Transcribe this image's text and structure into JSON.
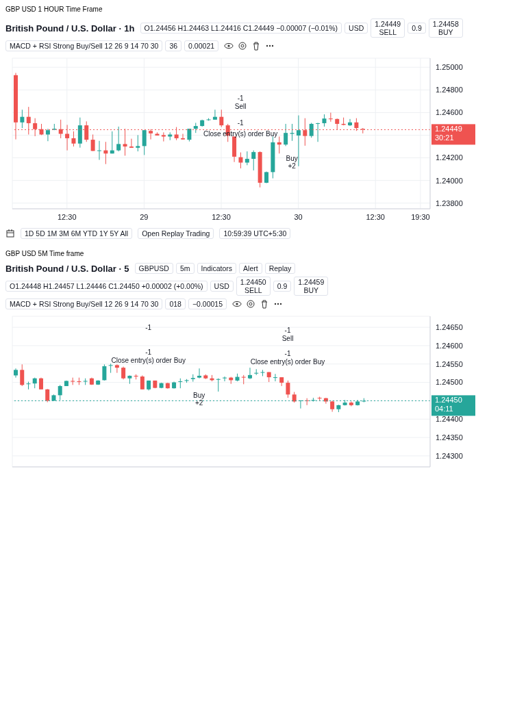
{
  "chart_data": [
    {
      "type": "candlestick",
      "title": "GBP USD 1 HOUR Time Frame",
      "subtitle": "British Pound / U.S. Dollar · 1h",
      "categories": [
        null,
        null,
        null,
        null,
        null,
        null,
        null,
        null,
        "12:30",
        null,
        null,
        null,
        null,
        null,
        null,
        null,
        null,
        null,
        null,
        null,
        "29",
        null,
        null,
        null,
        null,
        null,
        null,
        null,
        null,
        null,
        null,
        null,
        "12:30",
        null,
        null,
        null,
        null,
        null,
        null,
        null,
        null,
        null,
        null,
        null,
        "30",
        null,
        null,
        null,
        null,
        null,
        null,
        null,
        null,
        null,
        null,
        null,
        "12:30",
        null,
        null,
        null,
        null,
        null,
        null,
        "19:30",
        null
      ],
      "ohlc": [
        [
          1.2493,
          1.2495,
          1.24363,
          1.24513
        ],
        [
          1.24513,
          1.24625,
          1.24463,
          1.24562
        ],
        [
          1.24562,
          1.2465,
          1.24406,
          1.24506
        ],
        [
          1.24506,
          1.2455,
          1.24391,
          1.24453
        ],
        [
          1.24453,
          1.245,
          1.24401,
          1.24406
        ],
        [
          1.24406,
          1.24457,
          1.24347,
          1.24444
        ],
        [
          1.24449,
          1.245,
          1.24444,
          1.24457
        ],
        [
          1.24453,
          1.24537,
          1.24373,
          1.24412
        ],
        [
          1.24412,
          1.24491,
          1.24266,
          1.24373
        ],
        [
          1.24373,
          1.24434,
          1.243,
          1.24326
        ],
        [
          1.24326,
          1.24556,
          1.2429,
          1.24487
        ],
        [
          1.24487,
          1.24522,
          1.24341,
          1.2436
        ],
        [
          1.2436,
          1.24406,
          1.24261,
          1.24261
        ],
        [
          1.24261,
          1.2435,
          1.24182,
          1.24266
        ],
        [
          1.24266,
          1.24341,
          1.24145,
          1.24238
        ],
        [
          1.24238,
          1.24434,
          1.24238,
          1.24266
        ],
        [
          1.24266,
          1.24476,
          1.24257,
          1.24322
        ],
        [
          1.24322,
          1.24457,
          1.24219,
          1.243
        ],
        [
          1.243,
          1.24369,
          1.24289,
          1.24289
        ],
        [
          1.24289,
          1.24401,
          1.24257,
          1.24304
        ],
        [
          1.24304,
          1.24444,
          1.24225,
          1.24444
        ],
        [
          1.24438,
          1.24453,
          1.24363,
          1.24416
        ],
        [
          1.24412,
          1.24425,
          1.24397,
          1.24397
        ],
        [
          1.24401,
          1.24425,
          1.24345,
          1.24388
        ],
        [
          1.24388,
          1.24425,
          1.24356,
          1.24406
        ],
        [
          1.24406,
          1.24472,
          1.24356,
          1.24373
        ],
        [
          1.24373,
          1.24412,
          1.2436,
          1.24363
        ],
        [
          1.2436,
          1.24457,
          1.24345,
          1.24457
        ],
        [
          1.24457,
          1.24509,
          1.2442,
          1.24481
        ],
        [
          1.24481,
          1.24537,
          1.24476,
          1.24532
        ],
        [
          1.24534,
          1.2455,
          1.24528,
          1.24539
        ],
        [
          1.24537,
          1.24625,
          1.24537,
          1.24562
        ],
        [
          1.24562,
          1.24625,
          1.24472,
          1.24487
        ],
        [
          1.24487,
          1.245,
          1.24341,
          1.24397
        ],
        [
          1.24388,
          1.24388,
          1.24163,
          1.2421
        ],
        [
          1.24206,
          1.24248,
          1.24107,
          1.24158
        ],
        [
          1.24158,
          1.24257,
          1.24135,
          1.24191
        ],
        [
          1.24191,
          1.24266,
          1.24089,
          1.24251
        ],
        [
          1.24251,
          1.24257,
          1.23939,
          1.2398
        ],
        [
          1.2398,
          1.24079,
          1.23976,
          1.24074
        ],
        [
          1.24074,
          1.24388,
          1.24019,
          1.24337
        ],
        [
          1.24337,
          1.24388,
          1.24238,
          1.24317
        ],
        [
          1.24317,
          1.245,
          1.24304,
          1.2442
        ],
        [
          1.24412,
          1.245,
          1.2435,
          1.2442
        ],
        [
          1.24397,
          1.24575,
          1.24126,
          1.24444
        ],
        [
          1.24444,
          1.2455,
          1.24307,
          1.24393
        ],
        [
          1.24393,
          1.24509,
          1.24378,
          1.245
        ],
        [
          1.245,
          1.24509,
          1.24341,
          1.24506
        ],
        [
          1.24506,
          1.24584,
          1.24476,
          1.24547
        ],
        [
          1.24547,
          1.24599,
          1.24519,
          1.24543
        ],
        [
          1.24543,
          1.24547,
          1.24449,
          1.245
        ],
        [
          1.245,
          1.24556,
          1.24487,
          1.24491
        ],
        [
          1.24487,
          1.24543,
          1.24481,
          1.24513
        ],
        [
          1.24513,
          1.2455,
          1.24438,
          1.24463
        ],
        [
          1.24456,
          1.24463,
          1.24416,
          1.24449
        ],
        null,
        null,
        null,
        null,
        null,
        null,
        null,
        null,
        null,
        null
      ],
      "ylim": [
        1.2375,
        1.2508
      ],
      "yticks": [
        {
          "value": 1.238,
          "label": "1.23800"
        },
        {
          "value": 1.24,
          "label": "1.24000"
        },
        {
          "value": 1.242,
          "label": "1.24200"
        },
        {
          "value": 1.244,
          "label": null
        },
        {
          "value": 1.246,
          "label": "1.24600"
        },
        {
          "value": 1.248,
          "label": "1.24800"
        },
        {
          "value": 1.25,
          "label": "1.25000"
        }
      ],
      "grid": true,
      "ref_lines": [
        {
          "axis": "y",
          "value": 1.24449,
          "label": "1.24449\n30:21",
          "color": "#ef5350",
          "line_style": "dotted"
        }
      ],
      "annotations": [
        "O1.24456 H1.24463 L1.24416 C1.24449 −0.00007 (−0.01%)",
        "USD",
        "1.24449\nSELL",
        "0.9",
        "1.24458\nBUY",
        "MACD + RSI Strong Buy/Sell 12 26 9 14 70 30",
        "36",
        "0.00021",
        "1D 5D 1M 3M 6M YTD 1Y 5Y All",
        "Open Replay Trading",
        "10:59:39 UTC+5:30",
        "-1",
        "Sell",
        "-1",
        "Close entry(s) order Buy",
        "Buy",
        "+2"
      ]
    },
    {
      "type": "candlestick",
      "title": "GBP USD 5M Time frame",
      "subtitle": "British Pound / U.S. Dollar · 5",
      "categories": [
        null,
        null,
        null,
        null,
        null,
        null,
        null,
        null,
        null,
        null,
        null,
        null,
        null,
        null,
        null,
        null,
        null,
        null,
        null,
        null,
        null,
        null,
        null,
        null,
        null,
        null,
        null,
        null,
        null,
        null,
        null,
        null,
        null,
        null,
        null,
        null,
        null,
        null,
        null,
        null,
        null,
        null,
        null,
        null,
        null,
        null,
        null,
        null,
        null,
        null,
        null,
        null,
        null,
        null,
        null,
        null,
        null,
        null,
        null,
        null,
        null,
        null,
        null,
        null,
        null,
        null
      ],
      "ohlc": [
        [
          1.24519,
          1.24538,
          1.24513,
          1.24534
        ],
        [
          1.24534,
          1.24549,
          1.2449,
          1.24493
        ],
        [
          1.24497,
          1.24502,
          1.24481,
          1.24497
        ],
        [
          1.24497,
          1.24513,
          1.24484,
          1.24511
        ],
        [
          1.24511,
          1.24513,
          1.24481,
          1.24481
        ],
        [
          1.24481,
          1.24482,
          1.24446,
          1.2445
        ],
        [
          1.2445,
          1.24467,
          1.2445,
          1.24465
        ],
        [
          1.24465,
          1.24493,
          1.24452,
          1.2449
        ],
        [
          1.2449,
          1.24505,
          1.2449,
          1.24504
        ],
        [
          1.24504,
          1.24513,
          1.24493,
          1.24502
        ],
        [
          1.24503,
          1.24513,
          1.24493,
          1.24501
        ],
        [
          1.24503,
          1.24511,
          1.24493,
          1.24504
        ],
        [
          1.24511,
          1.24513,
          1.24493,
          1.24494
        ],
        [
          1.24494,
          1.24506,
          1.24493,
          1.24505
        ],
        [
          1.24506,
          1.24549,
          1.24505,
          1.24544
        ],
        [
          1.24546,
          1.24551,
          1.24526,
          1.24547
        ],
        [
          1.24547,
          1.24549,
          1.24526,
          1.2454
        ],
        [
          1.2454,
          1.24543,
          1.24508,
          1.24511
        ],
        [
          1.24511,
          1.24519,
          1.24496,
          1.24518
        ],
        [
          1.24518,
          1.24522,
          1.24508,
          1.24516
        ],
        [
          1.24516,
          1.24519,
          1.24481,
          1.24481
        ],
        [
          1.24481,
          1.24505,
          1.24478,
          1.24505
        ],
        [
          1.24505,
          1.24505,
          1.24484,
          1.24485
        ],
        [
          1.24485,
          1.24499,
          1.24484,
          1.24498
        ],
        [
          1.24498,
          1.24499,
          1.24483,
          1.24484
        ],
        [
          1.24484,
          1.24502,
          1.24483,
          1.245
        ],
        [
          1.24502,
          1.24511,
          1.24484,
          1.24503
        ],
        [
          1.24504,
          1.24509,
          1.24499,
          1.24506
        ],
        [
          1.24509,
          1.24522,
          1.24502,
          1.24512
        ],
        [
          1.24513,
          1.24538,
          1.24511,
          1.24518
        ],
        [
          1.24519,
          1.24522,
          1.24509,
          1.24511
        ],
        [
          1.24511,
          1.2452,
          1.24503,
          1.24506
        ],
        [
          1.24508,
          1.24511,
          1.24475,
          1.24509
        ],
        [
          1.24512,
          1.24516,
          1.24503,
          1.24513
        ],
        [
          1.24513,
          1.24515,
          1.24496,
          1.24506
        ],
        [
          1.24505,
          1.24524,
          1.24503,
          1.24515
        ],
        [
          1.24515,
          1.2452,
          1.24495,
          1.24513
        ],
        [
          1.24511,
          1.2454,
          1.24509,
          1.2452
        ],
        [
          1.24524,
          1.24536,
          1.2452,
          1.24526
        ],
        [
          1.24528,
          1.24534,
          1.24517,
          1.24528
        ],
        [
          1.24528,
          1.24528,
          1.24501,
          1.24514
        ],
        [
          1.24514,
          1.24523,
          1.24503,
          1.24514
        ],
        [
          1.24514,
          1.24514,
          1.2449,
          1.24499
        ],
        [
          1.24499,
          1.24505,
          1.24458,
          1.24467
        ],
        [
          1.24467,
          1.24474,
          1.24445,
          1.24448
        ],
        [
          1.2445,
          1.24451,
          1.24429,
          1.24451
        ],
        [
          1.24451,
          1.24457,
          1.24438,
          1.2445
        ],
        [
          1.24452,
          1.24458,
          1.24448,
          1.24452
        ],
        [
          1.24458,
          1.24461,
          1.24451,
          1.24457
        ],
        [
          1.24457,
          1.24458,
          1.24442,
          1.24448
        ],
        [
          1.24448,
          1.2445,
          1.2442,
          1.24427
        ],
        [
          1.24427,
          1.24439,
          1.24419,
          1.24438
        ],
        [
          1.24438,
          1.24452,
          1.24437,
          1.24445
        ],
        [
          1.24445,
          1.24448,
          1.24435,
          1.24438
        ],
        [
          1.24438,
          1.24452,
          1.24437,
          1.24448
        ],
        [
          1.24448,
          1.24457,
          1.24446,
          1.2445
        ],
        null,
        null,
        null,
        null,
        null,
        null,
        null,
        null,
        null,
        null
      ],
      "ylim": [
        1.2427,
        1.2468
      ],
      "yticks": [
        {
          "value": 1.243,
          "label": "1.24300"
        },
        {
          "value": 1.2435,
          "label": "1.24350"
        },
        {
          "value": 1.244,
          "label": "1.24400"
        },
        {
          "value": 1.2445,
          "label": null
        },
        {
          "value": 1.245,
          "label": "1.24500"
        },
        {
          "value": 1.2455,
          "label": "1.24550"
        },
        {
          "value": 1.246,
          "label": "1.24600"
        },
        {
          "value": 1.2465,
          "label": "1.24650"
        }
      ],
      "grid": true,
      "tick_labels": "y",
      "ref_lines": [
        {
          "axis": "y",
          "value": 1.2445,
          "label": "1.24450\n04:11",
          "color": "#26a69a",
          "line_style": "dotted"
        }
      ],
      "annotations": [
        "GBPUSD",
        "5m",
        "Indicators",
        "Alert",
        "Replay",
        "O1.24448 H1.24457 L1.24446 C1.24450 +0.00002 (+0.00%)",
        "USD",
        "1.24450\nSELL",
        "0.9",
        "1.24459\nBUY",
        "MACD + RSI Strong Buy/Sell 12 26 9 14 70 30",
        "018",
        "−0.00015",
        "-1",
        "-1",
        "Close entry(s) order Buy",
        "Buy",
        "+2",
        "-1",
        "Sell",
        "-1",
        "Close entry(s) order Buy"
      ]
    }
  ]
}
